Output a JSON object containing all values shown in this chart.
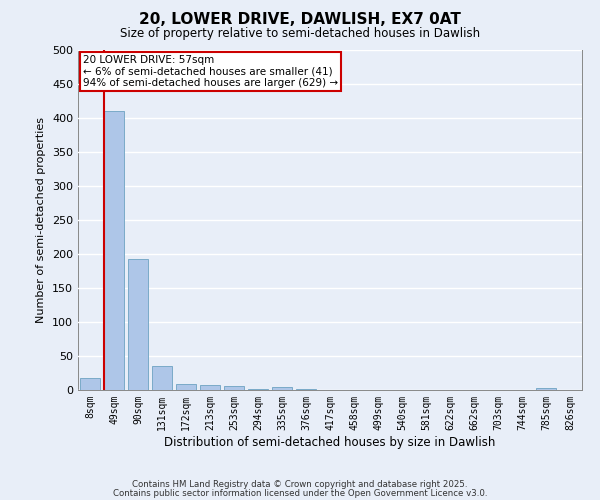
{
  "title": "20, LOWER DRIVE, DAWLISH, EX7 0AT",
  "subtitle": "Size of property relative to semi-detached houses in Dawlish",
  "xlabel": "Distribution of semi-detached houses by size in Dawlish",
  "ylabel": "Number of semi-detached properties",
  "bins": [
    "8sqm",
    "49sqm",
    "90sqm",
    "131sqm",
    "172sqm",
    "213sqm",
    "253sqm",
    "294sqm",
    "335sqm",
    "376sqm",
    "417sqm",
    "458sqm",
    "499sqm",
    "540sqm",
    "581sqm",
    "622sqm",
    "662sqm",
    "703sqm",
    "744sqm",
    "785sqm",
    "826sqm"
  ],
  "values": [
    18,
    410,
    193,
    35,
    9,
    8,
    6,
    1,
    5,
    1,
    0,
    0,
    0,
    0,
    0,
    0,
    0,
    0,
    0,
    3,
    0
  ],
  "bar_color": "#aec6e8",
  "bar_edge_color": "#7aaac8",
  "vline_color": "#cc0000",
  "annotation_text": "20 LOWER DRIVE: 57sqm\n← 6% of semi-detached houses are smaller (41)\n94% of semi-detached houses are larger (629) →",
  "annotation_box_color": "#cc0000",
  "annotation_text_color": "#000000",
  "ylim": [
    0,
    500
  ],
  "yticks": [
    0,
    50,
    100,
    150,
    200,
    250,
    300,
    350,
    400,
    450,
    500
  ],
  "background_color": "#e8eef8",
  "grid_color": "#ffffff",
  "footer1": "Contains HM Land Registry data © Crown copyright and database right 2025.",
  "footer2": "Contains public sector information licensed under the Open Government Licence v3.0."
}
